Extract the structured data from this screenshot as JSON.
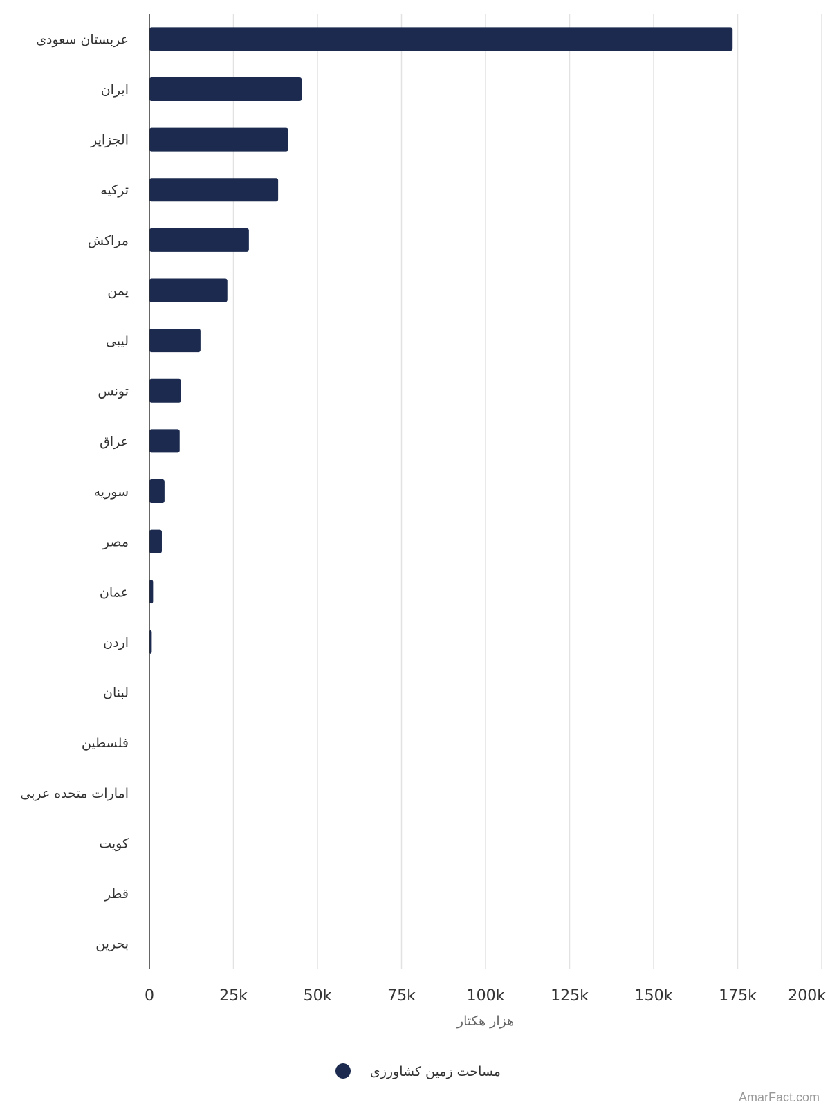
{
  "chart_data": {
    "type": "bar",
    "orientation": "horizontal",
    "categories": [
      "عربستان سعودی",
      "ایران",
      "الجزایر",
      "ترکیه",
      "مراکش",
      "یمن",
      "لیبی",
      "تونس",
      "عراق",
      "سوریه",
      "مصر",
      "عمان",
      "اردن",
      "لبنان",
      "فلسطین",
      "امارات متحده عربی",
      "کویت",
      "قطر",
      "بحرین"
    ],
    "series": [
      {
        "name": "مساحت زمین کشاورزی",
        "color": "#1b2a4e",
        "values": [
          173500,
          45300,
          41300,
          38300,
          29600,
          23200,
          15200,
          9400,
          9000,
          4500,
          3700,
          1100,
          700,
          0,
          0,
          0,
          0,
          0,
          0
        ]
      }
    ],
    "xlabel": "هزار هکتار",
    "xlim": [
      0,
      200000
    ],
    "x_ticks": [
      0,
      25000,
      50000,
      75000,
      100000,
      125000,
      150000,
      175000,
      200000
    ],
    "x_tick_labels": [
      "0",
      "25k",
      "50k",
      "75k",
      "100k",
      "125k",
      "150k",
      "175k",
      "200k"
    ],
    "grid": true,
    "legend": "bottom-center"
  },
  "credit": "AmarFact.com"
}
